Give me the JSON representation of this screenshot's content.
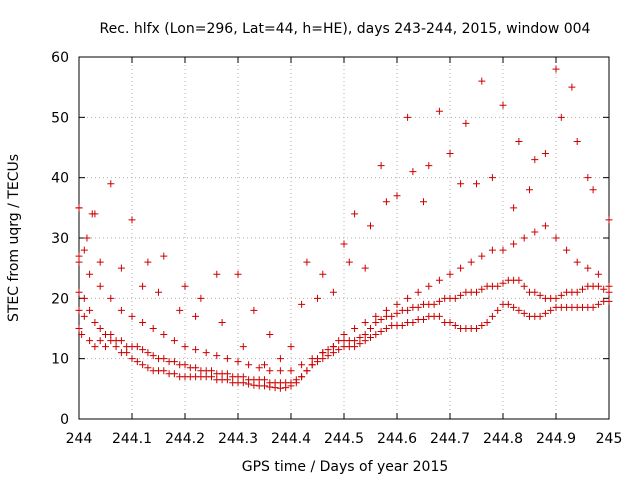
{
  "chart_data": {
    "type": "scatter",
    "title": "Rec. hlfx (Lon=296, Lat=44, h=HE), days 243-244, 2015, window 004",
    "xlabel": "GPS time / Days of year 2015",
    "ylabel": "STEC from uqrg / TECUs",
    "xlim": [
      244,
      245
    ],
    "ylim": [
      0,
      60
    ],
    "x_ticks": [
      244,
      244.1,
      244.2,
      244.3,
      244.4,
      244.5,
      244.6,
      244.7,
      244.8,
      244.9,
      245
    ],
    "x_tick_labels": [
      "244",
      "244.1",
      "244.2",
      "244.3",
      "244.4",
      "244.5",
      "244.6",
      "244.7",
      "244.8",
      "244.9",
      "245"
    ],
    "y_ticks": [
      0,
      10,
      20,
      30,
      40,
      50,
      60
    ],
    "y_tick_labels": [
      "0",
      "10",
      "20",
      "30",
      "40",
      "50",
      "60"
    ],
    "grid": true,
    "marker": "plus",
    "marker_color": "#cc0000",
    "series": [
      {
        "x": [
          244.0,
          244.0,
          244.0,
          244.0,
          244.005,
          244.01,
          244.015,
          244.02,
          244.025,
          244.03,
          244.04,
          244.05,
          244.06,
          244.07,
          244.08,
          244.09,
          244.1,
          244.11,
          244.12,
          244.13,
          244.14,
          244.15,
          244.16,
          244.17,
          244.18,
          244.19,
          244.2,
          244.21,
          244.22,
          244.23,
          244.24,
          244.25,
          244.26,
          244.27,
          244.28,
          244.29,
          244.3,
          244.31,
          244.32,
          244.33,
          244.34,
          244.35,
          244.36,
          244.37,
          244.38,
          244.39,
          244.4,
          244.41,
          244.42,
          244.43,
          244.44,
          244.45,
          244.46,
          244.47,
          244.48,
          244.49,
          244.5,
          244.51,
          244.52,
          244.53,
          244.54,
          244.55,
          244.56,
          244.57,
          244.58,
          244.59,
          244.6,
          244.61,
          244.62,
          244.63,
          244.64,
          244.65,
          244.66,
          244.67,
          244.68,
          244.69,
          244.7,
          244.71,
          244.72,
          244.73,
          244.74,
          244.75,
          244.76,
          244.77,
          244.78,
          244.79,
          244.8,
          244.81,
          244.82,
          244.83,
          244.84,
          244.85,
          244.86,
          244.87,
          244.88,
          244.89,
          244.9,
          244.91,
          244.92,
          244.93,
          244.94,
          244.95,
          244.96,
          244.97,
          244.98,
          244.99,
          245.0
        ],
        "y": [
          15,
          18,
          26,
          35,
          14,
          17,
          30,
          13,
          34,
          12,
          13,
          12,
          13,
          12,
          11,
          11,
          10,
          9.5,
          9,
          8.5,
          8,
          8,
          8,
          7.5,
          7.5,
          7,
          7,
          7,
          7,
          7,
          7,
          7,
          6.5,
          6.5,
          6.5,
          6,
          6,
          6,
          5.8,
          5.6,
          5.5,
          5.5,
          5.3,
          5.2,
          5.1,
          5.2,
          5.5,
          6,
          7,
          8,
          9,
          9.5,
          10,
          10.5,
          11,
          11.5,
          12,
          12,
          12,
          12.5,
          13,
          13.5,
          14,
          14.5,
          15,
          15.5,
          15.5,
          15.5,
          16,
          16,
          16.5,
          16.5,
          17,
          17,
          17,
          16,
          16,
          15.5,
          15,
          15,
          15,
          15,
          15.5,
          16,
          17,
          18,
          19,
          19,
          18.5,
          18,
          17.5,
          17,
          17,
          17,
          17.5,
          18,
          18.5,
          18.5,
          18.5,
          18.5,
          18.5,
          18.5,
          18.5,
          18.5,
          19,
          19.5,
          19.5
        ]
      },
      {
        "x": [
          244.0,
          244.01,
          244.02,
          244.03,
          244.04,
          244.05,
          244.06,
          244.07,
          244.08,
          244.09,
          244.1,
          244.11,
          244.12,
          244.13,
          244.14,
          244.15,
          244.16,
          244.17,
          244.18,
          244.19,
          244.2,
          244.21,
          244.22,
          244.23,
          244.24,
          244.25,
          244.26,
          244.27,
          244.28,
          244.29,
          244.3,
          244.31,
          244.32,
          244.33,
          244.34,
          244.35,
          244.36,
          244.37,
          244.38,
          244.39,
          244.4,
          244.41,
          244.42,
          244.43,
          244.44,
          244.45,
          244.46,
          244.47,
          244.48,
          244.49,
          244.5,
          244.51,
          244.52,
          244.53,
          244.54,
          244.55,
          244.56,
          244.57,
          244.58,
          244.59,
          244.6,
          244.61,
          244.62,
          244.63,
          244.64,
          244.65,
          244.66,
          244.67,
          244.68,
          244.69,
          244.7,
          244.71,
          244.72,
          244.73,
          244.74,
          244.75,
          244.76,
          244.77,
          244.78,
          244.79,
          244.8,
          244.81,
          244.82,
          244.83,
          244.84,
          244.85,
          244.86,
          244.87,
          244.88,
          244.89,
          244.9,
          244.91,
          244.92,
          244.93,
          244.94,
          244.95,
          244.96,
          244.97,
          244.98,
          244.99,
          245.0
        ],
        "y": [
          21,
          20,
          18,
          16,
          15,
          14,
          14,
          13,
          13,
          12,
          12,
          12,
          11.5,
          11,
          10.5,
          10,
          10,
          9.5,
          9.5,
          9,
          9,
          8.5,
          8.5,
          8,
          8,
          8,
          7.5,
          7.5,
          7.5,
          7,
          7,
          7,
          6.5,
          6.5,
          6.5,
          6.5,
          6,
          6,
          6,
          6,
          6,
          6.5,
          7,
          8,
          9,
          10,
          11,
          11.5,
          12,
          13,
          13,
          13,
          13,
          13.5,
          14,
          15,
          16,
          16.5,
          17,
          17,
          17.5,
          18,
          18,
          18.5,
          18.5,
          19,
          19,
          19,
          19.5,
          20,
          20,
          20,
          20.5,
          21,
          21,
          21,
          21.5,
          22,
          22,
          22,
          22.5,
          23,
          23,
          23,
          22,
          21,
          21,
          20.5,
          20,
          20,
          20,
          20.5,
          21,
          21,
          21,
          21.5,
          22,
          22,
          22,
          21.5,
          21
        ]
      },
      {
        "x": [
          244.0,
          244.02,
          244.04,
          244.06,
          244.08,
          244.1,
          244.12,
          244.14,
          244.16,
          244.18,
          244.2,
          244.22,
          244.24,
          244.26,
          244.28,
          244.3,
          244.32,
          244.34,
          244.36,
          244.38,
          244.4,
          244.42,
          244.44,
          244.46,
          244.48,
          244.5,
          244.52,
          244.54,
          244.56,
          244.58,
          244.6,
          244.62,
          244.64,
          244.66,
          244.68,
          244.7,
          244.72,
          244.74,
          244.76,
          244.78,
          244.8,
          244.82,
          244.84,
          244.86,
          244.88,
          244.9,
          244.92,
          244.94,
          244.96,
          244.98,
          245.0
        ],
        "y": [
          27,
          24,
          22,
          20,
          18,
          17,
          16,
          15,
          14,
          13,
          12,
          11.5,
          11,
          10.5,
          10,
          9.5,
          9,
          8.5,
          8,
          8,
          8,
          9,
          10,
          11,
          12,
          14,
          15,
          16,
          17,
          18,
          19,
          20,
          21,
          22,
          23,
          24,
          25,
          26,
          27,
          28,
          28,
          29,
          30,
          31,
          32,
          30,
          28,
          26,
          25,
          24,
          22
        ]
      },
      {
        "x": [
          244.0,
          244.03,
          244.06,
          244.1,
          244.13,
          244.16,
          244.2,
          244.23,
          244.26,
          244.3,
          244.33,
          244.36,
          244.4,
          244.43,
          244.46,
          244.5,
          244.52,
          244.55,
          244.58,
          244.6,
          244.63,
          244.66,
          244.7,
          244.73,
          244.76,
          244.8,
          244.83,
          244.86,
          244.9,
          244.93,
          244.96,
          245.0
        ],
        "y": [
          35,
          34,
          39,
          33,
          26,
          27,
          22,
          20,
          24,
          24,
          18,
          14,
          12,
          26,
          24,
          29,
          34,
          32,
          36,
          37,
          41,
          42,
          44,
          49,
          56,
          52,
          46,
          43,
          58,
          55,
          40,
          33
        ]
      },
      {
        "x": [
          244.01,
          244.04,
          244.08,
          244.12,
          244.15,
          244.19,
          244.22,
          244.27,
          244.31,
          244.35,
          244.38,
          244.42,
          244.45,
          244.48,
          244.51,
          244.54,
          244.57,
          244.62,
          244.65,
          244.68,
          244.72,
          244.75,
          244.78,
          244.82,
          244.85,
          244.88,
          244.91,
          244.94,
          244.97
        ],
        "y": [
          28,
          26,
          25,
          22,
          21,
          18,
          17,
          16,
          12,
          9,
          10,
          19,
          20,
          21,
          26,
          25,
          42,
          50,
          36,
          51,
          39,
          39,
          40,
          35,
          38,
          44,
          50,
          46,
          38
        ]
      }
    ]
  }
}
